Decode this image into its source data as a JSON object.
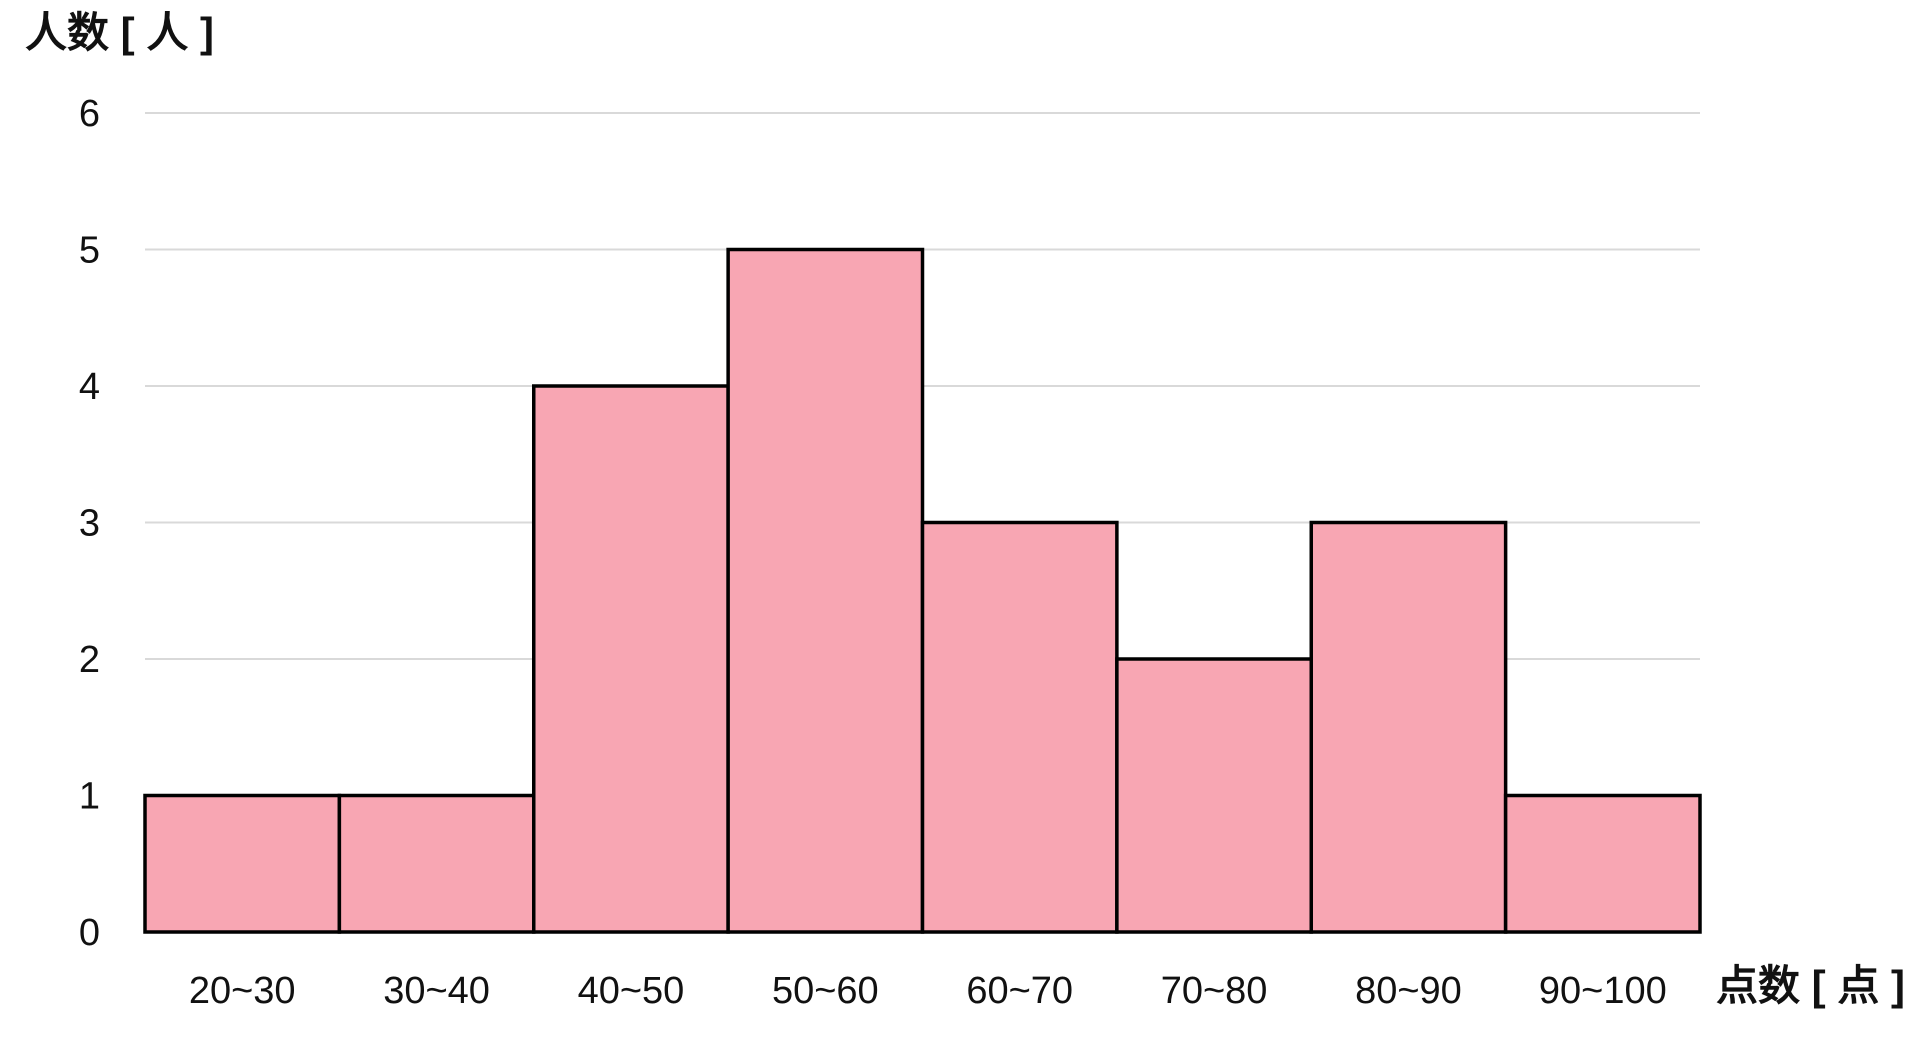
{
  "chart_data": {
    "type": "bar",
    "ylabel": "人数 [ 人 ]",
    "xlabel": "点数 [ 点 ]",
    "categories": [
      "20~30",
      "30~40",
      "40~50",
      "50~60",
      "60~70",
      "70~80",
      "80~90",
      "90~100"
    ],
    "values": [
      1,
      1,
      4,
      5,
      3,
      2,
      3,
      1
    ],
    "ylim": [
      0,
      6
    ],
    "yticks": [
      "0",
      "1",
      "2",
      "3",
      "4",
      "5",
      "6"
    ],
    "grid": true,
    "bar_color": "#F8A6B3",
    "bar_edge_color": "#000000",
    "grid_color": "#D9D9D9"
  }
}
